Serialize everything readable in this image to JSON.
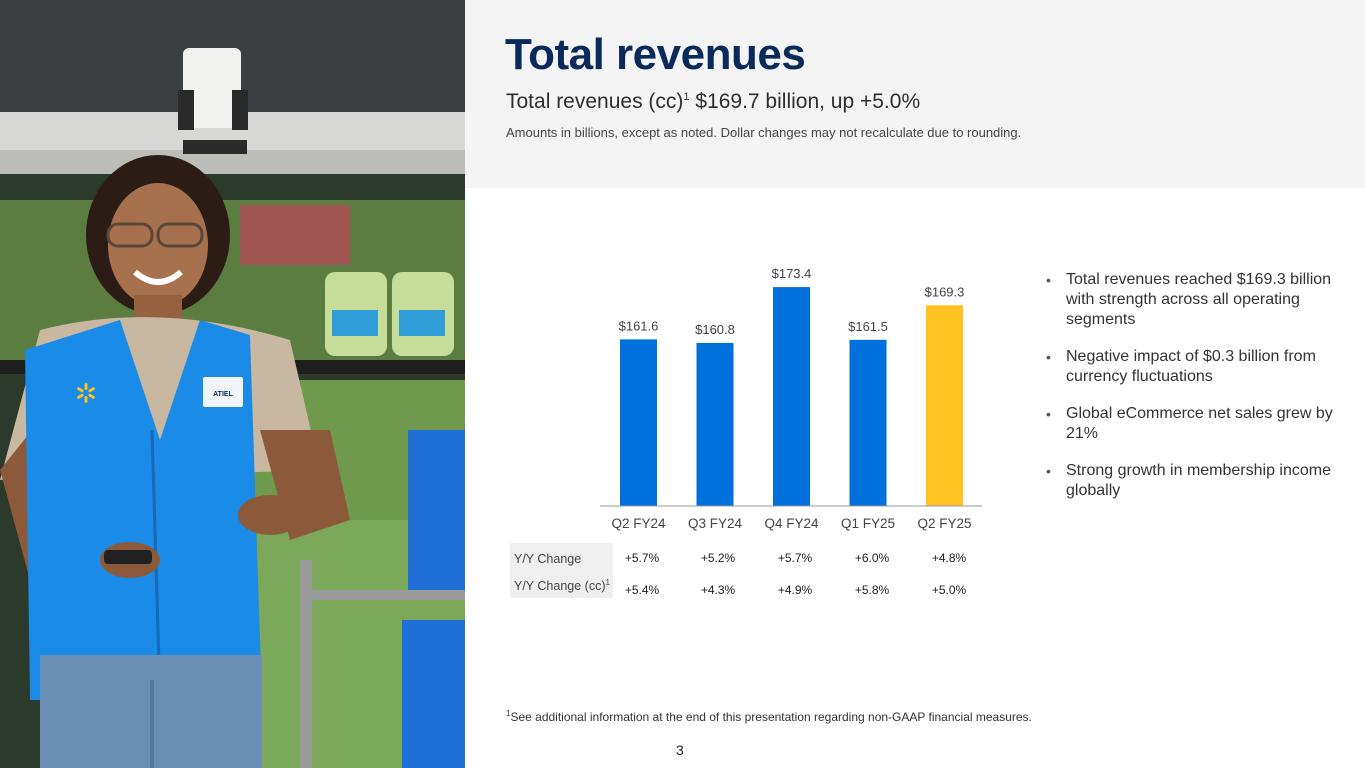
{
  "header": {
    "title": "Total revenues",
    "subtitle_prefix": "Total revenues (cc)",
    "subtitle_sup": "1",
    "subtitle_suffix": " $169.7 billion, up +5.0%",
    "note": "Amounts in billions, except as noted.  Dollar changes may not recalculate due to rounding."
  },
  "photo": {
    "badge_text": "ATIEL"
  },
  "chart_data": {
    "type": "bar",
    "categories": [
      "Q2 FY24",
      "Q3 FY24",
      "Q4 FY24",
      "Q1 FY25",
      "Q2 FY25"
    ],
    "values": [
      161.6,
      160.8,
      173.4,
      161.5,
      169.3
    ],
    "value_labels": [
      "$161.6",
      "$160.8",
      "$173.4",
      "$161.5",
      "$169.3"
    ],
    "bar_colors": [
      "#0071dc",
      "#0071dc",
      "#0071dc",
      "#0071dc",
      "#ffc220"
    ],
    "ylim": [
      124,
      175
    ],
    "title": "",
    "xlabel": "",
    "ylabel": "",
    "grid": false
  },
  "table": {
    "rows": [
      {
        "label": "Y/Y Change",
        "sup": "",
        "values": [
          "+5.7%",
          "+5.2%",
          "+5.7%",
          "+6.0%",
          "+4.8%"
        ]
      },
      {
        "label": "Y/Y Change (cc)",
        "sup": "1",
        "values": [
          "+5.4%",
          "+4.3%",
          "+4.9%",
          "+5.8%",
          "+5.0%"
        ]
      }
    ]
  },
  "bullets": [
    "Total revenues reached $169.3 billion with strength across all operating segments",
    "Negative impact of $0.3 billion from currency fluctuations",
    "Global eCommerce net sales grew by 21%",
    "Strong growth in membership income globally"
  ],
  "footer": {
    "footnote_sup": "1",
    "footnote": "See additional information at the end of this presentation regarding non-GAAP financial measures.",
    "page_number": "3"
  }
}
